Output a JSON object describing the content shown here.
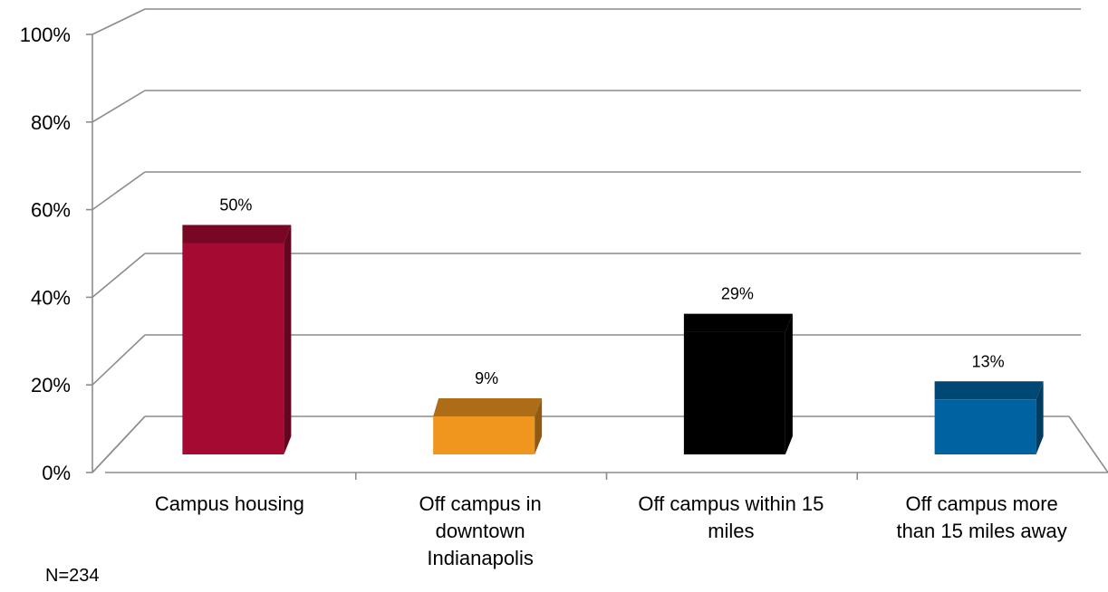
{
  "chart_data": {
    "type": "bar",
    "categories": [
      [
        "Campus housing"
      ],
      [
        "Off campus in",
        "downtown",
        "Indianapolis"
      ],
      [
        "Off campus within 15",
        "miles"
      ],
      [
        "Off campus more",
        "than 15 miles away"
      ]
    ],
    "values": [
      50,
      9,
      29,
      13
    ],
    "value_labels": [
      "50%",
      "9%",
      "29%",
      "13%"
    ],
    "colors": [
      "#A50A33",
      "#F0961E",
      "#000000",
      "#0062A0"
    ],
    "ylim": [
      0,
      100
    ],
    "yticks": [
      "0%",
      "20%",
      "40%",
      "60%",
      "80%",
      "100%"
    ],
    "grid": true,
    "three_d": true
  },
  "note": "N=234"
}
